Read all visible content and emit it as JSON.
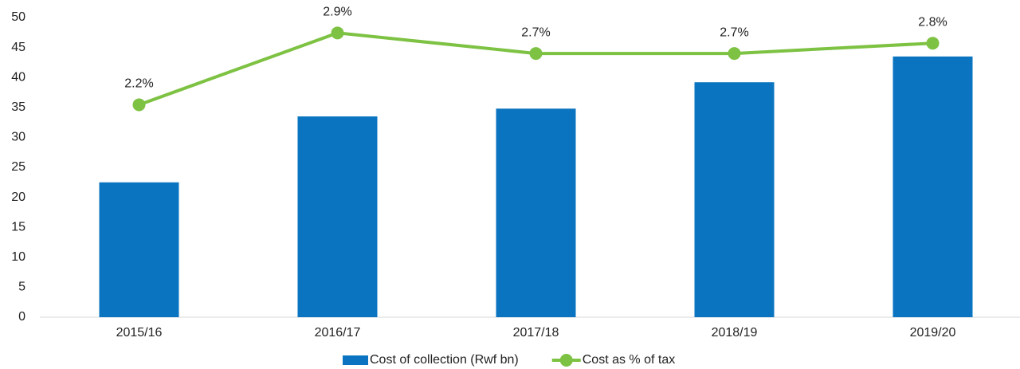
{
  "chart_data": {
    "type": "bar-line",
    "categories": [
      "2015/16",
      "2016/17",
      "2017/18",
      "2018/19",
      "2019/20"
    ],
    "series": [
      {
        "name": "Cost of collection (Rwf bn)",
        "type": "bar",
        "color": "#0a74c0",
        "values": [
          22.5,
          33.5,
          34.8,
          39.2,
          43.5
        ]
      },
      {
        "name": "Cost as % of tax",
        "type": "line",
        "axis": "y2",
        "color": "#7dc242",
        "values": [
          2.2,
          2.9,
          2.7,
          2.7,
          2.8
        ],
        "value_labels": [
          "2.2%",
          "2.9%",
          "2.7%",
          "2.7%",
          "2.8%"
        ]
      }
    ],
    "ylim": [
      0,
      50
    ],
    "yticks": [
      0,
      5,
      10,
      15,
      20,
      25,
      30,
      35,
      40,
      45,
      50
    ],
    "y2lim": [
      0.13,
      3.05
    ],
    "grid": false,
    "legend": "bottom"
  }
}
